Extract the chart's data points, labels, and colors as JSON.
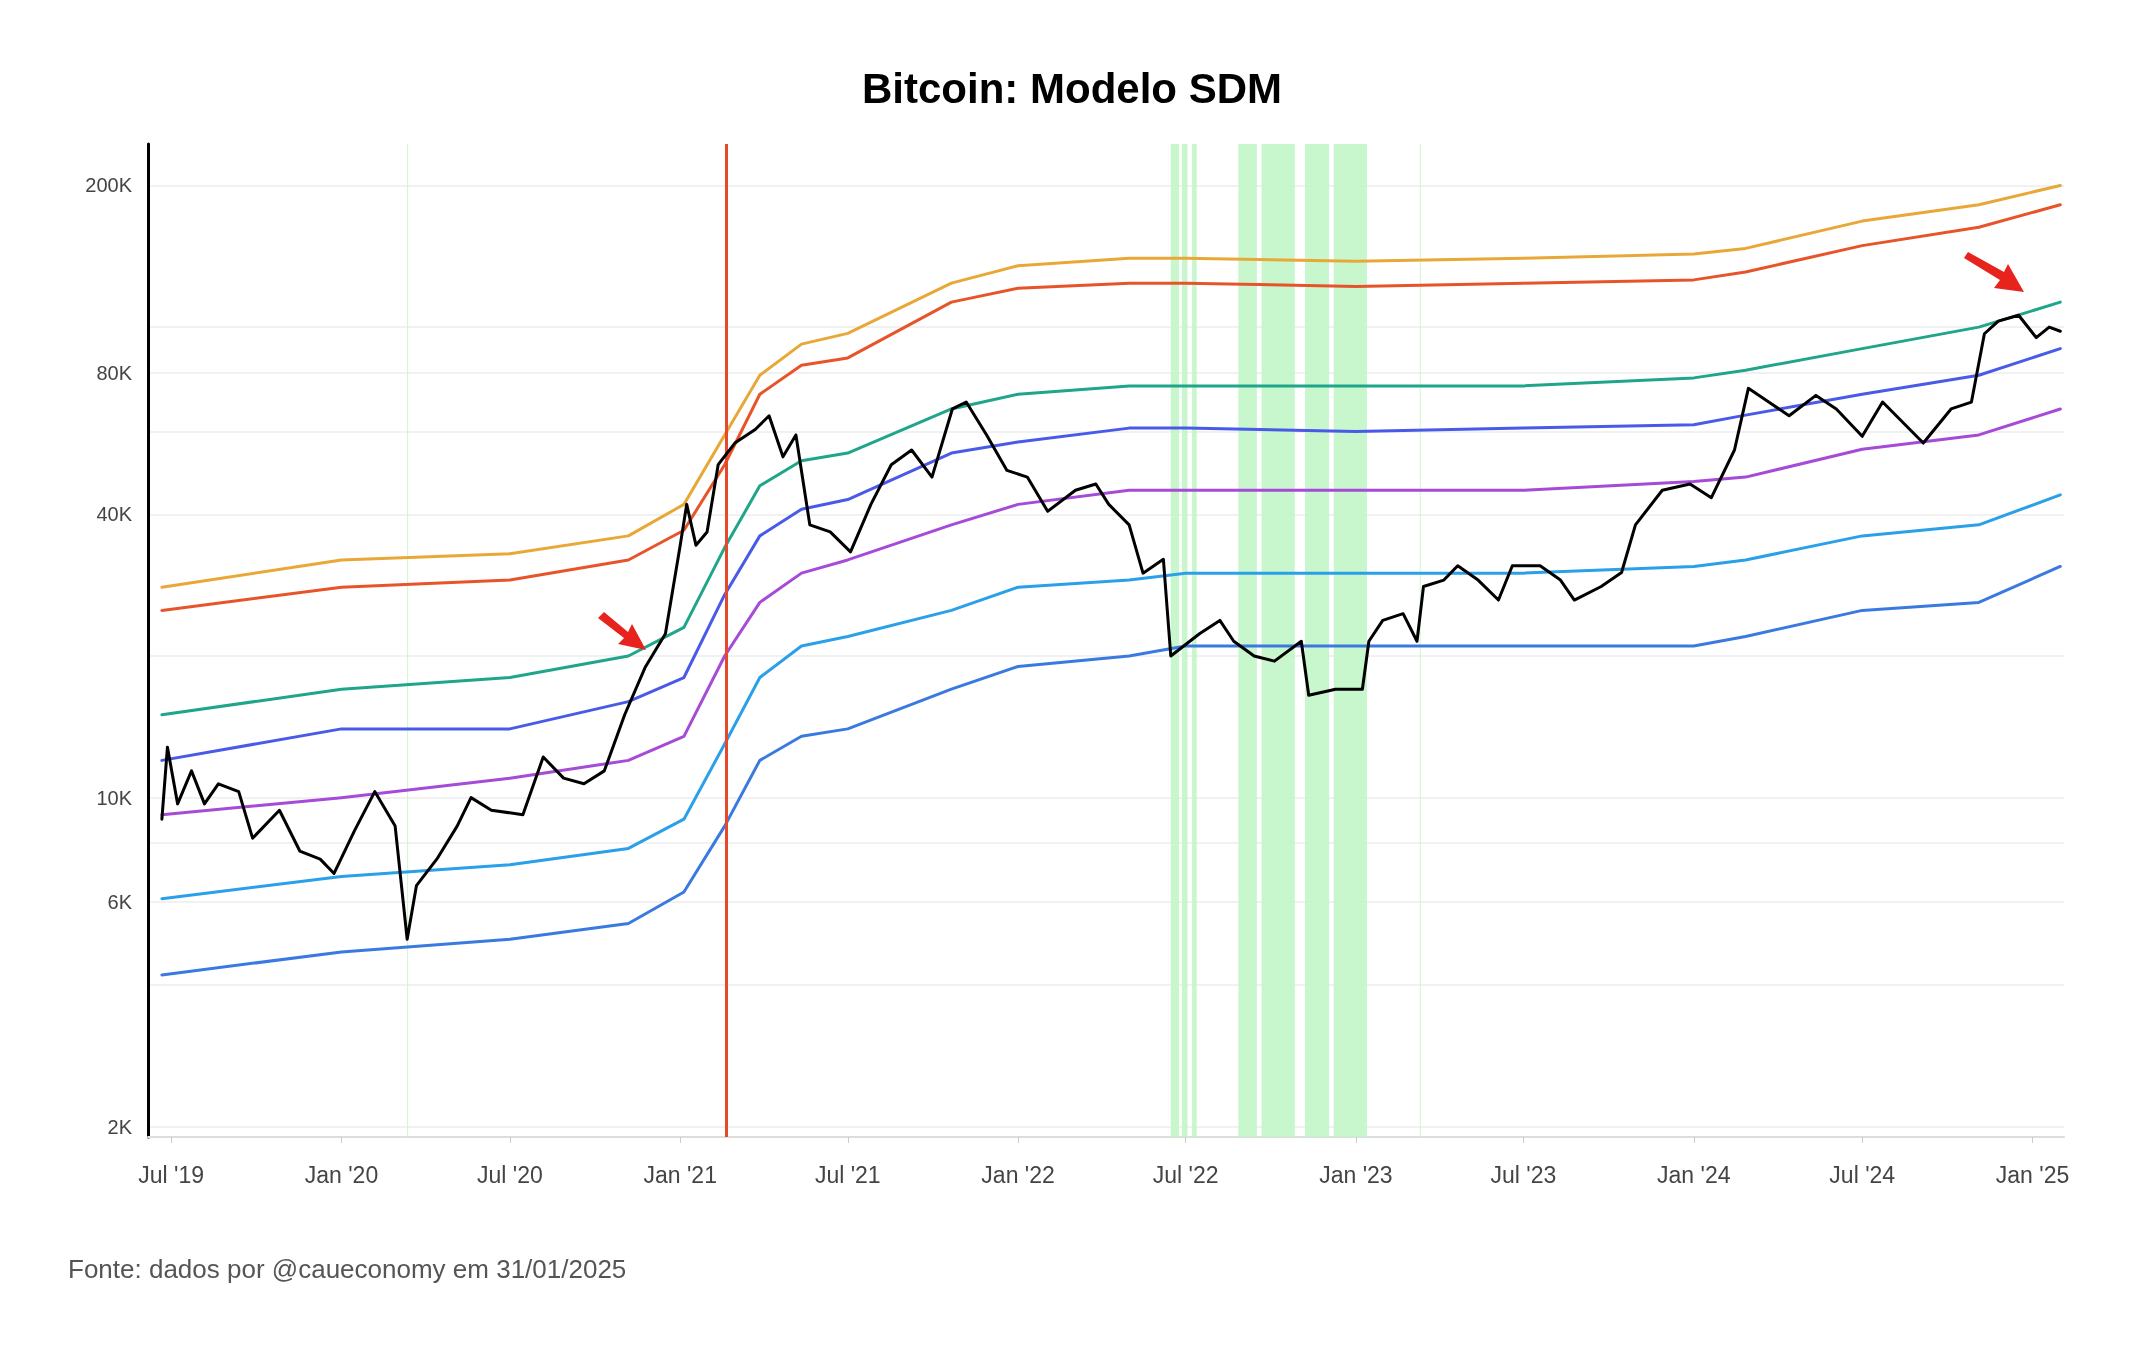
{
  "chart_data": {
    "type": "line",
    "title": "Bitcoin: Modelo SDM",
    "log": "y",
    "grid": "y",
    "marker": "none",
    "line_style": "solid",
    "xlim": [
      "2019-06-06",
      "2025-02-04"
    ],
    "xticks": [
      {
        "value": "2019-07-01",
        "label": "Jul '19"
      },
      {
        "value": "2020-01-01",
        "label": "Jan '20"
      },
      {
        "value": "2020-07-01",
        "label": "Jul '20"
      },
      {
        "value": "2021-01-01",
        "label": "Jan '21"
      },
      {
        "value": "2021-07-01",
        "label": "Jul '21"
      },
      {
        "value": "2022-01-01",
        "label": "Jan '22"
      },
      {
        "value": "2022-07-01",
        "label": "Jul '22"
      },
      {
        "value": "2023-01-01",
        "label": "Jan '23"
      },
      {
        "value": "2023-07-01",
        "label": "Jul '23"
      },
      {
        "value": "2024-01-01",
        "label": "Jan '24"
      },
      {
        "value": "2024-07-01",
        "label": "Jul '24"
      },
      {
        "value": "2025-01-01",
        "label": "Jan '25"
      }
    ],
    "ylim": [
      1900,
      245000
    ],
    "yticks": [
      {
        "value": 2000,
        "label": "2K"
      },
      {
        "value": 4000,
        "label": null
      },
      {
        "value": 6000,
        "label": "6K"
      },
      {
        "value": 8000,
        "label": null
      },
      {
        "value": 10000,
        "label": "10K"
      },
      {
        "value": 20000,
        "label": null
      },
      {
        "value": 40000,
        "label": "40K"
      },
      {
        "value": 60000,
        "label": null
      },
      {
        "value": 80000,
        "label": "80K"
      },
      {
        "value": 100000,
        "label": null
      },
      {
        "value": 200000,
        "label": "200K"
      }
    ],
    "series": [
      {
        "color": "#e8a838",
        "x": [
          "2019-06-21",
          "2020-01-01",
          "2020-07-01",
          "2020-11-06",
          "2021-01-05",
          "2021-02-18",
          "2021-03-28",
          "2021-05-12",
          "2021-07-01",
          "2021-10-21",
          "2022-01-01",
          "2022-05-01",
          "2022-07-01",
          "2023-01-01",
          "2023-07-01",
          "2024-01-01",
          "2024-02-26",
          "2024-07-01",
          "2024-11-04",
          "2025-01-31"
        ],
        "values": [
          28000,
          32000,
          33000,
          36000,
          42000,
          59000,
          79000,
          92000,
          97000,
          124000,
          135000,
          140000,
          140000,
          138000,
          140000,
          143000,
          147000,
          168000,
          182000,
          200000
        ]
      },
      {
        "color": "#e8542a",
        "x": [
          "2019-06-21",
          "2020-01-01",
          "2020-07-01",
          "2020-11-06",
          "2021-01-05",
          "2021-02-18",
          "2021-03-28",
          "2021-05-12",
          "2021-07-01",
          "2021-10-21",
          "2022-01-01",
          "2022-05-01",
          "2022-07-01",
          "2023-01-01",
          "2023-07-01",
          "2024-01-01",
          "2024-02-26",
          "2024-07-01",
          "2024-11-04",
          "2025-01-31"
        ],
        "values": [
          25000,
          28000,
          29000,
          32000,
          37000,
          51000,
          72000,
          83000,
          86000,
          113000,
          121000,
          124000,
          124000,
          122000,
          124000,
          126000,
          131000,
          149000,
          163000,
          182000
        ]
      },
      {
        "color": "#1fa58a",
        "x": [
          "2019-06-21",
          "2020-01-01",
          "2020-07-01",
          "2020-11-06",
          "2021-01-05",
          "2021-02-18",
          "2021-03-28",
          "2021-05-12",
          "2021-07-01",
          "2021-10-21",
          "2022-01-01",
          "2022-05-01",
          "2022-07-01",
          "2023-01-01",
          "2023-07-01",
          "2024-01-01",
          "2024-02-26",
          "2024-07-01",
          "2024-11-04",
          "2025-01-31"
        ],
        "values": [
          15000,
          17000,
          18000,
          20000,
          23000,
          34000,
          46000,
          52000,
          54000,
          67000,
          72000,
          75000,
          75000,
          75000,
          75000,
          78000,
          81000,
          90000,
          100000,
          113000
        ]
      },
      {
        "color": "#4a5ae8",
        "x": [
          "2019-06-21",
          "2020-01-01",
          "2020-07-01",
          "2020-11-06",
          "2021-01-05",
          "2021-02-18",
          "2021-03-28",
          "2021-05-12",
          "2021-07-01",
          "2021-10-21",
          "2022-01-01",
          "2022-05-01",
          "2022-07-01",
          "2023-01-01",
          "2023-07-01",
          "2024-01-01",
          "2024-02-26",
          "2024-07-01",
          "2024-11-04",
          "2025-01-31"
        ],
        "values": [
          12000,
          14000,
          14000,
          16000,
          18000,
          27000,
          36000,
          41000,
          43000,
          54000,
          57000,
          61000,
          61000,
          60000,
          61000,
          62000,
          65000,
          72000,
          79000,
          90000
        ]
      },
      {
        "color": "#a64ad8",
        "x": [
          "2019-06-21",
          "2020-01-01",
          "2020-07-01",
          "2020-11-06",
          "2021-01-05",
          "2021-02-18",
          "2021-03-28",
          "2021-05-12",
          "2021-07-01",
          "2021-10-21",
          "2022-01-01",
          "2022-05-01",
          "2022-07-01",
          "2023-01-01",
          "2023-07-01",
          "2024-01-01",
          "2024-02-26",
          "2024-07-01",
          "2024-11-04",
          "2025-01-31"
        ],
        "values": [
          9200,
          10000,
          11000,
          12000,
          13500,
          20000,
          26000,
          30000,
          32000,
          38000,
          42000,
          45000,
          45000,
          45000,
          45000,
          47000,
          48000,
          55000,
          59000,
          67000
        ]
      },
      {
        "color": "#2aa0e8",
        "x": [
          "2019-06-21",
          "2020-01-01",
          "2020-07-01",
          "2020-11-06",
          "2021-01-05",
          "2021-02-18",
          "2021-03-28",
          "2021-05-12",
          "2021-07-01",
          "2021-10-21",
          "2022-01-01",
          "2022-05-01",
          "2022-07-01",
          "2023-01-01",
          "2023-07-01",
          "2024-01-01",
          "2024-02-26",
          "2024-07-01",
          "2024-11-04",
          "2025-01-31"
        ],
        "values": [
          6100,
          6800,
          7200,
          7800,
          9000,
          13000,
          18000,
          21000,
          22000,
          25000,
          28000,
          29000,
          30000,
          30000,
          30000,
          31000,
          32000,
          36000,
          38000,
          44000
        ]
      },
      {
        "color": "#3a7ae0",
        "x": [
          "2019-06-21",
          "2020-01-01",
          "2020-07-01",
          "2020-11-06",
          "2021-01-05",
          "2021-02-18",
          "2021-03-28",
          "2021-05-12",
          "2021-07-01",
          "2021-10-21",
          "2022-01-01",
          "2022-05-01",
          "2022-07-01",
          "2023-01-01",
          "2023-07-01",
          "2024-01-01",
          "2024-02-26",
          "2024-07-01",
          "2024-11-04",
          "2025-01-31"
        ],
        "values": [
          4200,
          4700,
          5000,
          5400,
          6300,
          8700,
          12000,
          13500,
          14000,
          17000,
          19000,
          20000,
          21000,
          21000,
          21000,
          21000,
          22000,
          25000,
          26000,
          31000
        ]
      },
      {
        "color": "#000000",
        "x": [
          "2019-06-21",
          "2019-06-27",
          "2019-07-08",
          "2019-07-23",
          "2019-08-06",
          "2019-08-21",
          "2019-09-12",
          "2019-09-27",
          "2019-10-26",
          "2019-11-17",
          "2019-12-09",
          "2019-12-24",
          "2020-01-15",
          "2020-02-06",
          "2020-02-28",
          "2020-03-12",
          "2020-03-22",
          "2020-04-13",
          "2020-05-05",
          "2020-05-20",
          "2020-06-11",
          "2020-07-15",
          "2020-08-06",
          "2020-08-28",
          "2020-09-19",
          "2020-10-11",
          "2020-11-02",
          "2020-11-24",
          "2020-12-16",
          "2021-01-01",
          "2021-01-08",
          "2021-01-18",
          "2021-01-30",
          "2021-02-11",
          "2021-03-01",
          "2021-03-23",
          "2021-04-07",
          "2021-04-22",
          "2021-05-06",
          "2021-05-21",
          "2021-06-12",
          "2021-07-04",
          "2021-07-26",
          "2021-08-17",
          "2021-09-08",
          "2021-09-30",
          "2021-10-22",
          "2021-11-06",
          "2021-11-28",
          "2021-12-20",
          "2022-01-11",
          "2022-02-02",
          "2022-03-04",
          "2022-03-26",
          "2022-04-09",
          "2022-05-01",
          "2022-05-16",
          "2022-06-07",
          "2022-06-15",
          "2022-07-16",
          "2022-08-07",
          "2022-08-22",
          "2022-09-13",
          "2022-10-05",
          "2022-11-03",
          "2022-11-11",
          "2022-12-10",
          "2023-01-08",
          "2023-01-15",
          "2023-01-30",
          "2023-02-21",
          "2023-03-08",
          "2023-03-15",
          "2023-04-06",
          "2023-04-21",
          "2023-05-13",
          "2023-06-04",
          "2023-06-19",
          "2023-07-19",
          "2023-08-10",
          "2023-08-25",
          "2023-09-23",
          "2023-10-15",
          "2023-10-30",
          "2023-11-28",
          "2023-12-28",
          "2024-01-20",
          "2024-02-14",
          "2024-02-29",
          "2024-03-22",
          "2024-04-13",
          "2024-05-12",
          "2024-06-03",
          "2024-07-01",
          "2024-07-23",
          "2024-08-14",
          "2024-09-05",
          "2024-10-05",
          "2024-10-27",
          "2024-11-10",
          "2024-11-25",
          "2024-12-17",
          "2025-01-05",
          "2025-01-19",
          "2025-01-31"
        ],
        "values": [
          9000,
          12800,
          9700,
          11400,
          9700,
          10700,
          10300,
          8200,
          9400,
          7700,
          7400,
          6900,
          8500,
          10300,
          8700,
          5000,
          6500,
          7400,
          8700,
          10000,
          9400,
          9200,
          12200,
          11000,
          10700,
          11400,
          15000,
          18900,
          22300,
          34400,
          42000,
          34400,
          36700,
          51000,
          56700,
          60600,
          64800,
          53000,
          59000,
          38000,
          36700,
          33300,
          42000,
          51000,
          54800,
          48000,
          67000,
          69300,
          59000,
          49600,
          48000,
          40600,
          45000,
          46400,
          42000,
          38000,
          30000,
          32100,
          20000,
          22300,
          23800,
          21500,
          20000,
          19500,
          21500,
          16500,
          17000,
          17000,
          21500,
          23800,
          24600,
          21500,
          28100,
          29000,
          31100,
          29000,
          26300,
          31100,
          31100,
          29000,
          26300,
          28100,
          30100,
          38000,
          45000,
          46400,
          43400,
          54800,
          74100,
          69300,
          64800,
          71600,
          67000,
          58600,
          69300,
          62700,
          56700,
          67000,
          69300,
          96800,
          103000,
          106000,
          95000,
          100000,
          98000
        ]
      }
    ],
    "ref_lines": [
      {
        "axis": "x",
        "value": "2021-02-20",
        "color": "#e8482a",
        "line_style": "solid"
      }
    ],
    "bands": [
      {
        "axis": "x",
        "from": "2020-03-12",
        "to": "2020-03-13",
        "color": "#c2f5c8"
      },
      {
        "axis": "x",
        "from": "2022-06-15",
        "to": "2022-06-24",
        "color": "#c2f5c8"
      },
      {
        "axis": "x",
        "from": "2022-06-27",
        "to": "2022-07-03",
        "color": "#c2f5c8"
      },
      {
        "axis": "x",
        "from": "2022-07-08",
        "to": "2022-07-13",
        "color": "#c2f5c8"
      },
      {
        "axis": "x",
        "from": "2022-08-27",
        "to": "2022-09-16",
        "color": "#c2f5c8"
      },
      {
        "axis": "x",
        "from": "2022-09-21",
        "to": "2022-10-27",
        "color": "#c2f5c8"
      },
      {
        "axis": "x",
        "from": "2022-11-07",
        "to": "2022-12-03",
        "color": "#c2f5c8"
      },
      {
        "axis": "x",
        "from": "2022-12-08",
        "to": "2023-01-13",
        "color": "#c2f5c8"
      },
      {
        "axis": "x",
        "from": "2023-03-11",
        "to": "2023-03-12",
        "color": "#c2f5c8"
      }
    ],
    "annotations": [
      "Fonte: dados por @caueconomy em 31/01/2025"
    ]
  }
}
